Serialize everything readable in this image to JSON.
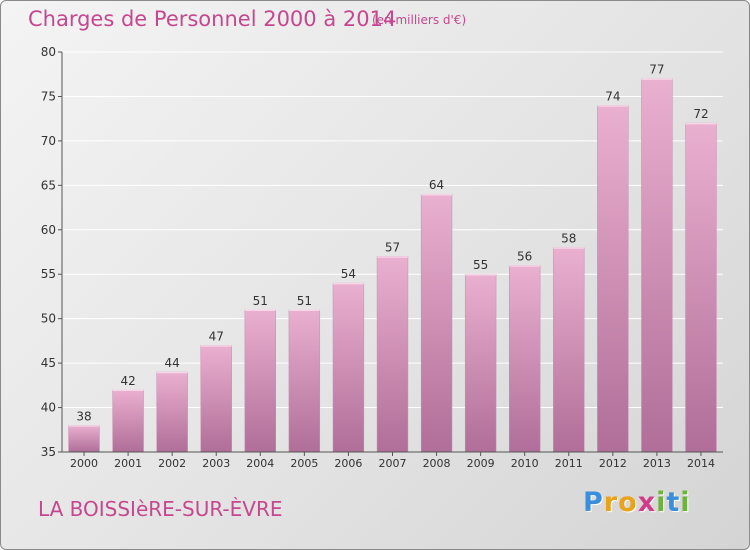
{
  "header": {
    "title": "Charges de Personnel 2000 à 2014",
    "subtitle": "(en milliers d'€)"
  },
  "footer": {
    "place": "LA BOISSIèRE-SUR-ÈVRE",
    "logo_letters": [
      "P",
      "r",
      "o",
      "x",
      "i",
      "t",
      "i"
    ],
    "logo_colors": [
      "#3a8ede",
      "#e8a21c",
      "#e8a21c",
      "#d53a8a",
      "#6fb43a",
      "#3a8ede",
      "#6fb43a"
    ]
  },
  "colors": {
    "bar_top": "#eab0d0",
    "bar_bottom": "#b06e98",
    "text_accent": "#c6478f"
  },
  "chart_data": {
    "type": "bar",
    "categories": [
      "2000",
      "2001",
      "2002",
      "2003",
      "2004",
      "2005",
      "2006",
      "2007",
      "2008",
      "2009",
      "2010",
      "2011",
      "2012",
      "2013",
      "2014"
    ],
    "values": [
      38,
      42,
      44,
      47,
      51,
      51,
      54,
      57,
      64,
      55,
      56,
      58,
      74,
      77,
      72
    ],
    "ylim": [
      35,
      80
    ],
    "yticks": [
      35,
      40,
      45,
      50,
      55,
      60,
      65,
      70,
      75,
      80
    ],
    "grid": true
  }
}
